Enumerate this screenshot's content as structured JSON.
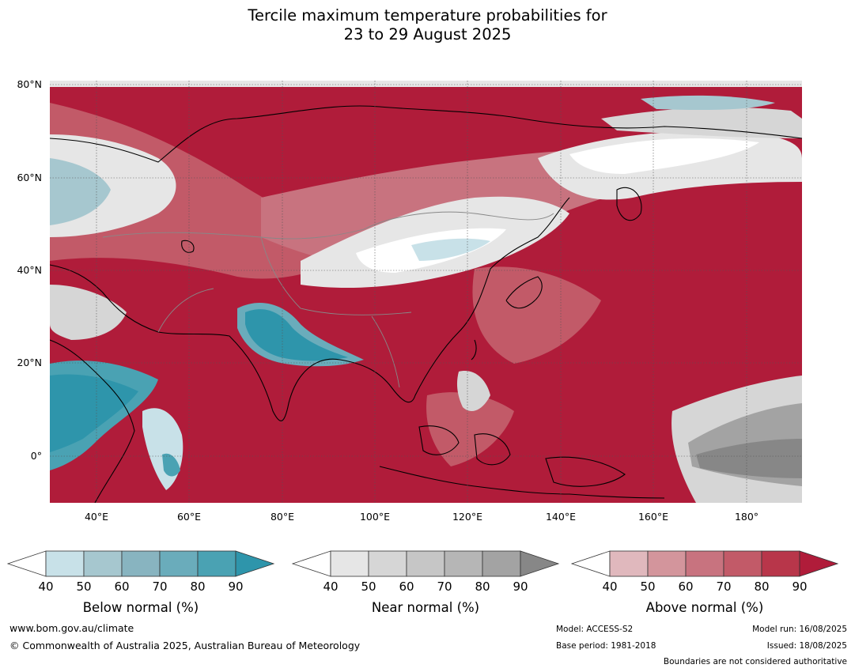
{
  "title": {
    "line1": "Tercile maximum temperature probabilities for",
    "line2": "23 to 29 August 2025"
  },
  "map": {
    "lat_labels": [
      "80°N",
      "60°N",
      "40°N",
      "20°N",
      "0°"
    ],
    "lon_labels": [
      "40°E",
      "60°E",
      "80°E",
      "100°E",
      "120°E",
      "140°E",
      "160°E",
      "180°"
    ],
    "lat_values": [
      80,
      60,
      40,
      20,
      0
    ],
    "lon_values": [
      40,
      60,
      80,
      100,
      120,
      140,
      160,
      180
    ],
    "extent": {
      "lon_min": 30,
      "lon_max": 192,
      "lat_min": -10,
      "lat_max": 81
    }
  },
  "colorbars": [
    {
      "label": "Below normal (%)",
      "ticks": [
        "40",
        "50",
        "60",
        "70",
        "80",
        "90"
      ],
      "colors": [
        "#ffffff",
        "#c8e1e8",
        "#a6c7cf",
        "#88b4c0",
        "#6aacbb",
        "#4aa2b3",
        "#2e95ab"
      ]
    },
    {
      "label": "Near normal (%)",
      "ticks": [
        "40",
        "50",
        "60",
        "70",
        "80",
        "90"
      ],
      "colors": [
        "#ffffff",
        "#e6e6e6",
        "#d6d6d6",
        "#c6c6c6",
        "#b6b6b6",
        "#a3a3a3",
        "#878787"
      ]
    },
    {
      "label": "Above normal (%)",
      "ticks": [
        "40",
        "50",
        "60",
        "70",
        "80",
        "90"
      ],
      "colors": [
        "#ffffff",
        "#e0b8bd",
        "#d3959c",
        "#c8737f",
        "#c25a68",
        "#b8364a",
        "#b01c3a"
      ]
    }
  ],
  "footer": {
    "website": "www.bom.gov.au/climate",
    "copyright": "© Commonwealth of Australia 2025, Australian Bureau of Meteorology",
    "model": "Model: ACCESS-S2",
    "base_period": "Base period: 1981-2018",
    "model_run": "Model run: 16/08/2025",
    "issued": "Issued: 18/08/2025",
    "disclaimer": "Boundaries are not considered authoritative"
  }
}
